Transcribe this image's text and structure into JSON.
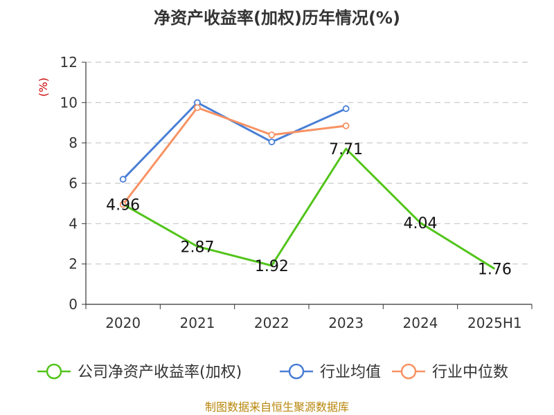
{
  "chart_data": {
    "type": "line",
    "title": "净资产收益率(加权)历年情况(%)",
    "ylabel": "(%)",
    "categories": [
      "2020",
      "2021",
      "2022",
      "2023",
      "2024",
      "2025H1"
    ],
    "ylim": [
      0,
      12
    ],
    "yticks": [
      0,
      2,
      4,
      6,
      8,
      10,
      12
    ],
    "grid": true,
    "legend_position": "bottom",
    "series": [
      {
        "name": "公司净资产收益率(加权)",
        "color": "#52c41a",
        "values": [
          4.96,
          2.87,
          1.92,
          7.71,
          4.04,
          1.76
        ],
        "labels": [
          "4.96",
          "2.87",
          "1.92",
          "7.71",
          "4.04",
          "1.76"
        ]
      },
      {
        "name": "行业均值",
        "color": "#4a7fd6",
        "values": [
          6.2,
          10.0,
          8.05,
          9.7,
          null,
          null
        ]
      },
      {
        "name": "行业中位数",
        "color": "#f79263",
        "values": [
          4.95,
          9.75,
          8.4,
          8.85,
          null,
          null
        ]
      }
    ],
    "source": "制图数据来自恒生聚源数据库"
  }
}
